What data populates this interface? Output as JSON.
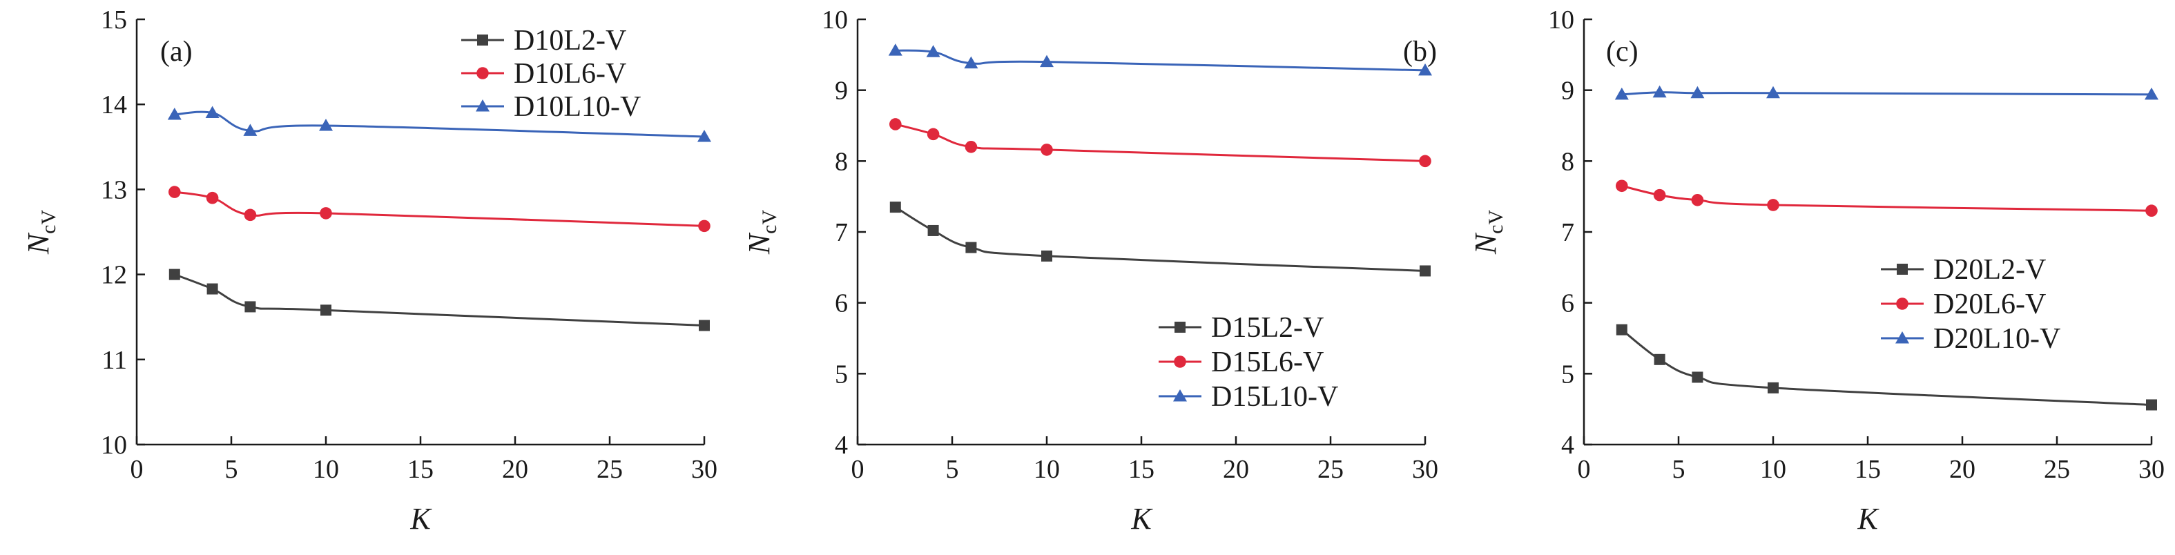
{
  "chart_data": [
    {
      "type": "line",
      "panel_label": "(a)",
      "xlabel": "K",
      "ylabel": "N",
      "ylabel_sub": "cV",
      "xlim": [
        0,
        30
      ],
      "ylim": [
        10,
        15
      ],
      "xticks": [
        "0",
        "5",
        "10",
        "15",
        "20",
        "25",
        "30"
      ],
      "yticks": [
        "10",
        "11",
        "12",
        "13",
        "14",
        "15"
      ],
      "grid": false,
      "legend_position": "top-right",
      "x": [
        2,
        4,
        6,
        10,
        30
      ],
      "series": [
        {
          "name": "D10L2-V",
          "color": "#404040",
          "marker": "square",
          "values": [
            12.0,
            11.83,
            11.62,
            11.58,
            11.4
          ]
        },
        {
          "name": "D10L6-V",
          "color": "#e0283c",
          "marker": "circle",
          "values": [
            12.97,
            12.9,
            12.7,
            12.72,
            12.57
          ]
        },
        {
          "name": "D10L10-V",
          "color": "#3a64b8",
          "marker": "triangle",
          "values": [
            13.88,
            13.9,
            13.69,
            13.75,
            13.62
          ]
        }
      ]
    },
    {
      "type": "line",
      "panel_label": "(b)",
      "xlabel": "K",
      "ylabel": "N",
      "ylabel_sub": "cV",
      "xlim": [
        0,
        30
      ],
      "ylim": [
        4,
        10
      ],
      "xticks": [
        "0",
        "5",
        "10",
        "15",
        "20",
        "25",
        "30"
      ],
      "yticks": [
        "4",
        "5",
        "6",
        "7",
        "8",
        "9",
        "10"
      ],
      "grid": false,
      "legend_position": "bottom-right",
      "x": [
        2,
        4,
        6,
        10,
        30
      ],
      "series": [
        {
          "name": "D15L2-V",
          "color": "#404040",
          "marker": "square",
          "values": [
            7.35,
            7.02,
            6.78,
            6.66,
            6.45
          ]
        },
        {
          "name": "D15L6-V",
          "color": "#e0283c",
          "marker": "circle",
          "values": [
            8.52,
            8.38,
            8.2,
            8.16,
            8.0
          ]
        },
        {
          "name": "D15L10-V",
          "color": "#3a64b8",
          "marker": "triangle",
          "values": [
            9.56,
            9.54,
            9.38,
            9.4,
            9.28
          ]
        }
      ]
    },
    {
      "type": "line",
      "panel_label": "(c)",
      "xlabel": "K",
      "ylabel": "N",
      "ylabel_sub": "cV",
      "xlim": [
        0,
        30
      ],
      "ylim": [
        4,
        10
      ],
      "xticks": [
        "0",
        "5",
        "10",
        "15",
        "20",
        "25",
        "30"
      ],
      "yticks": [
        "4",
        "5",
        "6",
        "7",
        "8",
        "9",
        "10"
      ],
      "grid": false,
      "legend_position": "center-right",
      "x": [
        2,
        4,
        6,
        10,
        30
      ],
      "series": [
        {
          "name": "D20L2-V",
          "color": "#404040",
          "marker": "square",
          "values": [
            5.62,
            5.2,
            4.95,
            4.8,
            4.56
          ]
        },
        {
          "name": "D20L6-V",
          "color": "#e0283c",
          "marker": "circle",
          "values": [
            7.65,
            7.52,
            7.45,
            7.38,
            7.3
          ]
        },
        {
          "name": "D20L10-V",
          "color": "#3a64b8",
          "marker": "triangle",
          "values": [
            8.94,
            8.97,
            8.96,
            8.96,
            8.94
          ]
        }
      ]
    }
  ]
}
